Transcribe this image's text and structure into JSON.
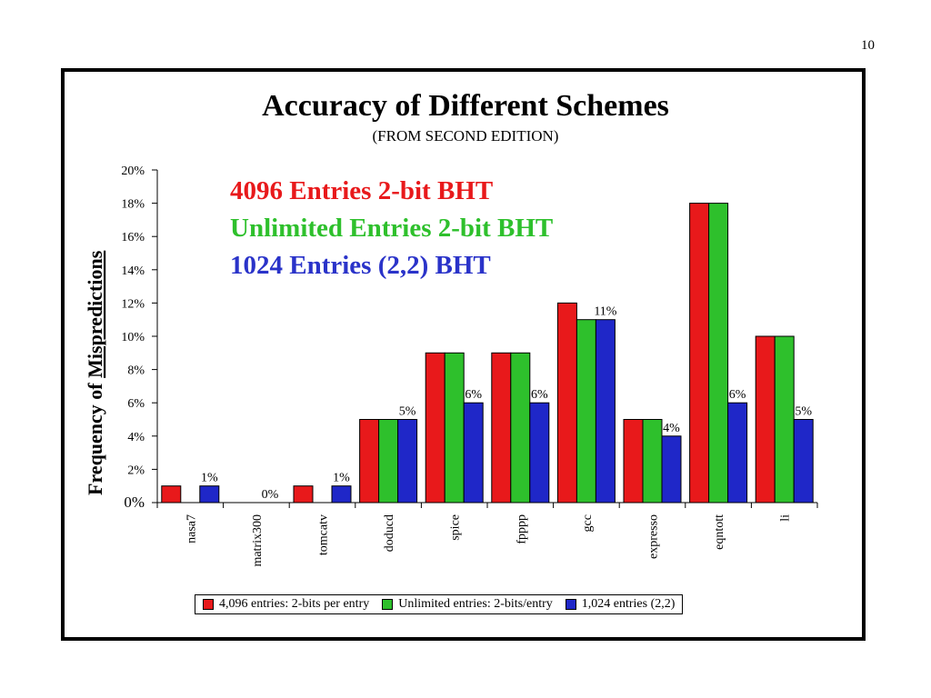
{
  "page_number": "10",
  "title": "Accuracy of Different Schemes",
  "subtitle": "(FROM SECOND EDITION)",
  "annotations": [
    {
      "text": "4096 Entries 2-bit BHT",
      "color": "#e8191b"
    },
    {
      "text": "Unlimited Entries 2-bit BHT",
      "color": "#2ec02c"
    },
    {
      "text": "1024 Entries (2,2) BHT",
      "color": "#2a33c9"
    }
  ],
  "chart_data": {
    "type": "bar",
    "ylabel_prefix": "Frequency of",
    "ylabel_emphasis": "Mispredictions",
    "ylim": [
      0,
      20
    ],
    "yticks": [
      "0%",
      "2%",
      "4%",
      "6%",
      "8%",
      "10%",
      "12%",
      "14%",
      "16%",
      "18%",
      "20%"
    ],
    "categories": [
      "nasa7",
      "matrix300",
      "tomcatv",
      "doducd",
      "spice",
      "fpppp",
      "gcc",
      "expresso",
      "eqntott",
      "li"
    ],
    "series": [
      {
        "name": "4,096 entries:  2-bits per entry",
        "color": "#e8191b",
        "values": [
          1,
          0,
          1,
          5,
          9,
          9,
          12,
          5,
          18,
          10
        ]
      },
      {
        "name": "Unlimited entries:  2-bits/entry",
        "color": "#2ec02c",
        "values": [
          0,
          0,
          0,
          5,
          9,
          9,
          11,
          5,
          18,
          10
        ]
      },
      {
        "name": "1,024 entries (2,2)",
        "color": "#1f27c8",
        "values": [
          1,
          0,
          1,
          5,
          6,
          6,
          11,
          4,
          6,
          5
        ]
      }
    ],
    "data_labels": [
      "1%",
      "0%",
      "1%",
      "5%",
      "6%",
      "6%",
      "11%",
      "4%",
      "6%",
      "5%"
    ],
    "legend_position": "bottom",
    "grid": false
  }
}
